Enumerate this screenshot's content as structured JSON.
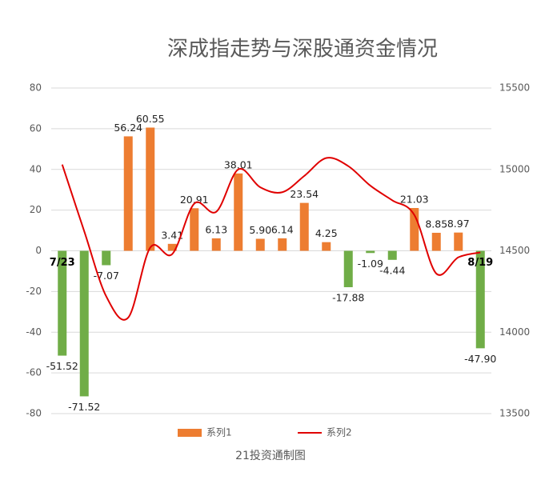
{
  "chart_data": {
    "type": "bar",
    "title": "深成指走势与深股通资金情况",
    "source": "21投资通制图",
    "categories": [
      "7/23",
      null,
      null,
      null,
      null,
      null,
      null,
      null,
      null,
      null,
      null,
      null,
      null,
      null,
      null,
      null,
      null,
      null,
      null,
      "8/19"
    ],
    "series": [
      {
        "name": "系列1",
        "color": "#ed7d31",
        "negative_color": "#70ad47",
        "values": [
          -51.52,
          -71.52,
          -7.07,
          56.24,
          60.55,
          3.41,
          20.91,
          6.13,
          38.01,
          5.9,
          6.14,
          23.54,
          4.25,
          -17.88,
          -1.09,
          -4.44,
          21.03,
          8.85,
          8.97,
          -47.9
        ],
        "value_labels": [
          "-51.52",
          "-71.52",
          "-7.07",
          "56.24",
          "60.55",
          "3.41",
          "20.91",
          "6.13",
          "38.01",
          "5.90",
          "6.14",
          "23.54",
          "4.25",
          "-17.88",
          "-1.09",
          "-4.44",
          "21.03",
          "8.85",
          "8.97",
          "-47.90"
        ]
      },
      {
        "name": "系列2",
        "color": "#e00000",
        "axis": "y2",
        "type": "line",
        "values": [
          15030,
          14620,
          14220,
          14090,
          14520,
          14480,
          14790,
          14740,
          15000,
          14890,
          14860,
          14960,
          15070,
          15020,
          14900,
          14810,
          14720,
          14360,
          14460,
          14490
        ]
      }
    ],
    "ylim": [
      -80,
      80
    ],
    "yticks": [
      -80,
      -60,
      -40,
      -20,
      0,
      20,
      40,
      60,
      80
    ],
    "y2lim": [
      13500,
      15500
    ],
    "y2ticks": [
      13500,
      14000,
      14500,
      15000,
      15500
    ],
    "grid": true,
    "legend": "bottom"
  }
}
